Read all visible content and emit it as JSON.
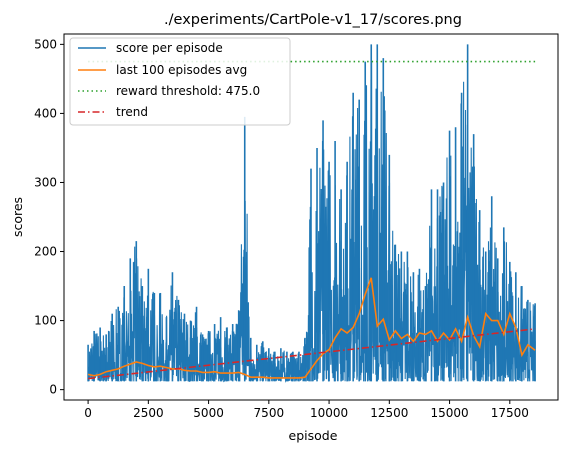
{
  "chart_data": {
    "type": "line",
    "title": "./experiments/CartPole-v1_17/scores.png",
    "xlabel": "episode",
    "ylabel": "scores",
    "xlim": [
      -1000,
      19500
    ],
    "ylim": [
      -15,
      515
    ],
    "xticks": [
      0,
      2500,
      5000,
      7500,
      10000,
      12500,
      15000,
      17500
    ],
    "yticks": [
      0,
      100,
      200,
      300,
      400,
      500
    ],
    "xtick_labels": [
      "0",
      "2500",
      "5000",
      "7500",
      "10000",
      "12500",
      "15000",
      "17500"
    ],
    "ytick_labels": [
      "0",
      "100",
      "200",
      "300",
      "400",
      "500"
    ],
    "legend_position": "top-left",
    "series": [
      {
        "name": "score per episode",
        "style": "solid",
        "color": "#1f77b4",
        "envelope": {
          "x": [
            0,
            250,
            500,
            750,
            1000,
            1250,
            1500,
            1750,
            2000,
            2250,
            2500,
            2750,
            3000,
            3250,
            3500,
            3750,
            4000,
            4250,
            4500,
            4750,
            5000,
            5250,
            5500,
            5750,
            6000,
            6250,
            6500,
            6750,
            7000,
            7250,
            7500,
            7750,
            8000,
            8250,
            8500,
            8750,
            9000,
            9250,
            9500,
            9750,
            10000,
            10250,
            10500,
            10750,
            11000,
            11250,
            11500,
            11750,
            12000,
            12250,
            12500,
            12750,
            13000,
            13250,
            13500,
            13750,
            14000,
            14250,
            14500,
            14750,
            15000,
            15250,
            15500,
            15750,
            16000,
            16250,
            16500,
            16750,
            17000,
            17250,
            17500,
            17750,
            18000,
            18250,
            18550
          ],
          "min": [
            12,
            12,
            12,
            12,
            12,
            12,
            12,
            12,
            12,
            12,
            12,
            12,
            12,
            12,
            12,
            12,
            12,
            12,
            12,
            12,
            12,
            12,
            12,
            12,
            12,
            12,
            12,
            12,
            12,
            12,
            12,
            12,
            12,
            12,
            12,
            12,
            12,
            12,
            12,
            12,
            12,
            12,
            12,
            12,
            12,
            12,
            12,
            12,
            12,
            12,
            12,
            12,
            12,
            12,
            12,
            12,
            12,
            12,
            12,
            12,
            12,
            12,
            12,
            12,
            12,
            12,
            12,
            12,
            12,
            12,
            12,
            12,
            12,
            12,
            12
          ],
          "max": [
            65,
            85,
            90,
            80,
            110,
            120,
            150,
            190,
            215,
            150,
            175,
            140,
            140,
            105,
            170,
            130,
            110,
            100,
            120,
            80,
            85,
            95,
            105,
            90,
            95,
            115,
            395,
            75,
            65,
            70,
            60,
            55,
            60,
            55,
            55,
            55,
            75,
            320,
            350,
            390,
            330,
            360,
            290,
            330,
            430,
            420,
            475,
            500,
            500,
            480,
            340,
            210,
            200,
            200,
            170,
            175,
            150,
            290,
            290,
            300,
            375,
            380,
            430,
            500,
            370,
            260,
            200,
            280,
            190,
            235,
            185,
            170,
            150,
            130,
            125
          ]
        }
      },
      {
        "name": "last 100 episodes avg",
        "style": "solid",
        "color": "#ff7f0e",
        "x": [
          0,
          250,
          500,
          750,
          1000,
          1250,
          1500,
          1750,
          2000,
          2250,
          2500,
          2750,
          3000,
          3250,
          3500,
          3750,
          4000,
          4250,
          4500,
          4750,
          5000,
          5250,
          5500,
          5750,
          6000,
          6250,
          6500,
          6750,
          7000,
          7250,
          7500,
          7750,
          8000,
          8250,
          8500,
          8750,
          9000,
          9250,
          9500,
          9750,
          10000,
          10250,
          10500,
          10750,
          11000,
          11250,
          11500,
          11750,
          12000,
          12250,
          12500,
          12750,
          13000,
          13250,
          13500,
          13750,
          14000,
          14250,
          14500,
          14750,
          15000,
          15250,
          15500,
          15750,
          16000,
          16250,
          16500,
          16750,
          17000,
          17250,
          17500,
          17750,
          18000,
          18250,
          18550
        ],
        "y": [
          22,
          20,
          22,
          26,
          28,
          30,
          34,
          37,
          40,
          38,
          35,
          33,
          34,
          32,
          30,
          30,
          28,
          27,
          27,
          25,
          25,
          26,
          24,
          24,
          24,
          25,
          22,
          18,
          18,
          18,
          17,
          17,
          17,
          17,
          17,
          17,
          18,
          30,
          42,
          52,
          58,
          75,
          88,
          82,
          90,
          110,
          138,
          162,
          92,
          102,
          72,
          85,
          74,
          80,
          70,
          82,
          80,
          85,
          70,
          82,
          72,
          88,
          70,
          105,
          78,
          62,
          110,
          100,
          100,
          80,
          110,
          90,
          50,
          65,
          57
        ]
      },
      {
        "name": "reward threshold: 475.0",
        "style": "dotted",
        "color": "#2ca02c",
        "x": [
          0,
          18550
        ],
        "y": [
          475,
          475
        ]
      },
      {
        "name": "trend",
        "style": "dashdot",
        "color": "#d62728",
        "x": [
          0,
          18550
        ],
        "y": [
          16,
          88
        ]
      }
    ]
  }
}
